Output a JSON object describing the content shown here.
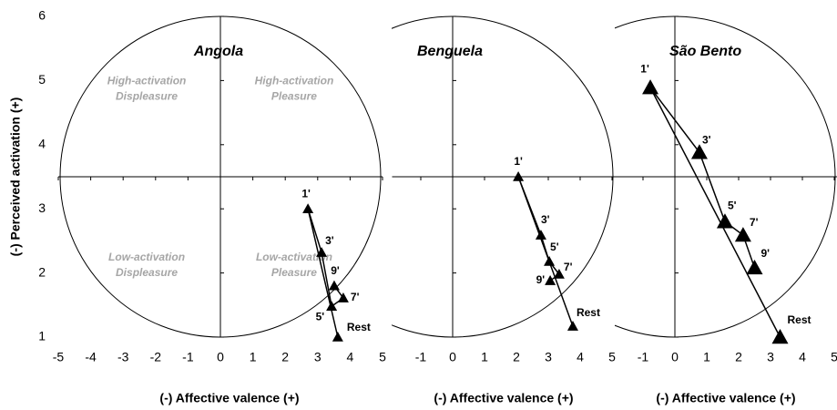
{
  "chart_data": [
    {
      "type": "scatter",
      "title": "Angola",
      "xlabel": "(-) Affective valence (+)",
      "ylabel": "(-) Perceived activation (+)",
      "xlim": [
        -5,
        5
      ],
      "xticks": [
        -5,
        -4,
        -3,
        -2,
        -1,
        0,
        1,
        2,
        3,
        4,
        5
      ],
      "ylim": [
        1,
        6
      ],
      "yticks": [
        1,
        2,
        3,
        4,
        5,
        6
      ],
      "annotations": [
        [
          "High-activation",
          "Displeasure"
        ],
        [
          "High-activation",
          "Pleasure"
        ],
        [
          "Low-activation",
          "Displeasure"
        ],
        [
          "Low-activation",
          "Pleasure"
        ]
      ],
      "point_labels": [
        "Rest",
        "1'",
        "3'",
        "5'",
        "7'",
        "9'"
      ],
      "x": [
        3.62,
        2.7,
        3.12,
        3.43,
        3.79,
        3.51
      ],
      "values": [
        1.0,
        3.0,
        2.32,
        1.48,
        1.61,
        1.8
      ],
      "color": "#000000",
      "marker_size": 6
    },
    {
      "type": "scatter",
      "title": "Benguela",
      "xlabel": "(-) Affective valence (+)",
      "xlim": [
        -1.9,
        5.1
      ],
      "xticks": [
        -1,
        0,
        1,
        2,
        3,
        4,
        5
      ],
      "ylim": [
        1,
        6
      ],
      "yticks": [
        1,
        2,
        3,
        4,
        5,
        6
      ],
      "point_labels": [
        "Rest",
        "1'",
        "3'",
        "5'",
        "7'",
        "9'"
      ],
      "x": [
        3.77,
        2.06,
        2.77,
        3.03,
        3.34,
        3.06
      ],
      "values": [
        1.17,
        3.5,
        2.59,
        2.18,
        1.98,
        1.88
      ],
      "color": "#000000",
      "marker_size": 6
    },
    {
      "type": "scatter",
      "title": "São Bento",
      "xlabel": "(-) Affective valence (+)",
      "xlim": [
        -1.9,
        5.1
      ],
      "xticks": [
        -1,
        0,
        1,
        2,
        3,
        4,
        5
      ],
      "ylim": [
        1,
        6
      ],
      "yticks": [
        1,
        2,
        3,
        4,
        5,
        6
      ],
      "point_labels": [
        "Rest",
        "1'",
        "3'",
        "5'",
        "7'",
        "9'"
      ],
      "x": [
        3.3,
        -0.77,
        0.77,
        1.57,
        2.14,
        2.5
      ],
      "values": [
        1.0,
        4.89,
        3.88,
        2.8,
        2.59,
        2.08
      ],
      "color": "#000000",
      "marker_size": 9
    }
  ]
}
